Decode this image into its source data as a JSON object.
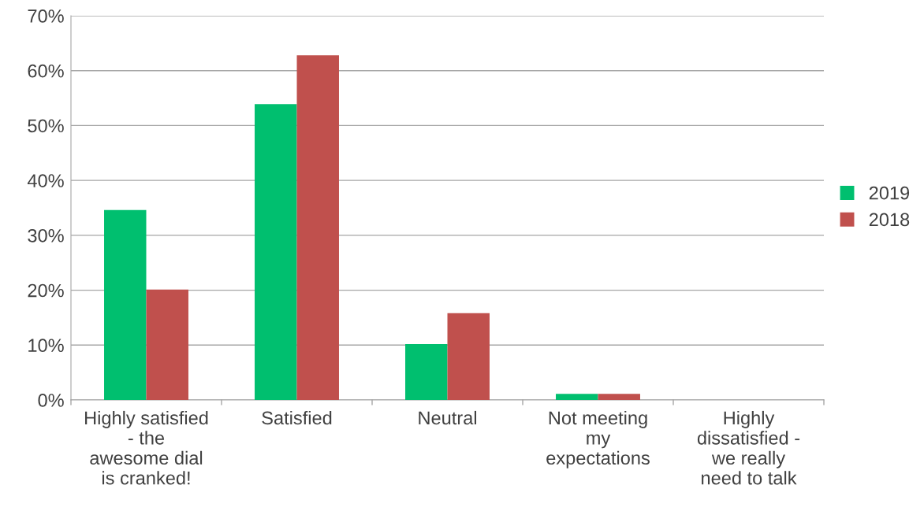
{
  "chart_data": {
    "type": "bar",
    "categories": [
      "Highly satisfied\n- the\nawesome dial\nis cranked!",
      "Satisfied",
      "Neutral",
      "Not meeting\nmy\nexpectations",
      "Highly\ndissatisfied -\nwe really\nneed to talk"
    ],
    "series": [
      {
        "name": "2019",
        "color": "#00bf6f",
        "values": [
          34.6,
          53.9,
          10.2,
          1.1,
          0
        ]
      },
      {
        "name": "2018",
        "color": "#c0504d",
        "values": [
          20.1,
          62.8,
          15.8,
          1.1,
          0
        ]
      }
    ],
    "ylim": [
      0,
      70
    ],
    "yticks": [
      {
        "value": 0,
        "label": "0%"
      },
      {
        "value": 10,
        "label": "10%"
      },
      {
        "value": 20,
        "label": "20%"
      },
      {
        "value": 30,
        "label": "30%"
      },
      {
        "value": 40,
        "label": "40%"
      },
      {
        "value": 50,
        "label": "50%"
      },
      {
        "value": 60,
        "label": "60%"
      },
      {
        "value": 70,
        "label": "70%"
      }
    ],
    "grid": "y",
    "legend": "right"
  }
}
